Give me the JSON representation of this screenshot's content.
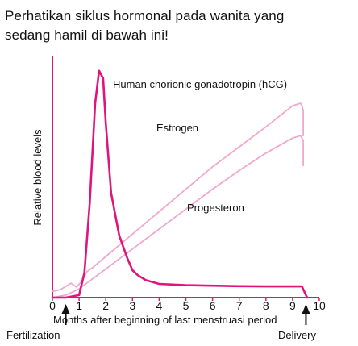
{
  "question": {
    "line1": "Perhatikan siklus hormonal pada wanita yang",
    "line2": "sedang hamil di bawah ini!"
  },
  "chart_data": {
    "type": "line",
    "xlabel": "Months after beginning of last menstruasi period",
    "ylabel": "Relative blood levels",
    "xlim": [
      0,
      10
    ],
    "ylim": [
      0,
      100
    ],
    "xticks": [
      "0",
      "1",
      "2",
      "3",
      "4",
      "5",
      "6",
      "7",
      "8",
      "9",
      "10"
    ],
    "grid": false,
    "legend": "none (series labelled directly on the plot)",
    "annotations": [
      {
        "text": "Fertilization",
        "x": 0.5
      },
      {
        "text": "Delivery",
        "x": 9.5
      }
    ],
    "series": [
      {
        "name": "Human chorionic gonadotropin (hCG)",
        "color": "#e0147a",
        "x": [
          0,
          0.5,
          1.0,
          1.2,
          1.4,
          1.6,
          1.75,
          1.9,
          2.0,
          2.2,
          2.5,
          2.8,
          3.0,
          3.2,
          3.5,
          4.0,
          5.0,
          6.0,
          7.0,
          8.0,
          9.0,
          9.35,
          9.5,
          9.55
        ],
        "y": [
          0,
          0,
          1,
          10,
          38,
          78,
          91,
          88,
          70,
          42,
          25,
          16,
          11,
          9,
          7,
          5.5,
          5,
          4.8,
          4.6,
          4.5,
          4.5,
          4.5,
          1,
          0
        ]
      },
      {
        "name": "Estrogen",
        "color": "#f0a8cc",
        "x": [
          0,
          0.3,
          0.5,
          0.7,
          0.9,
          1.1,
          1.3,
          1.5,
          2.0,
          3.0,
          4.0,
          5.0,
          6.0,
          7.0,
          8.0,
          9.0,
          9.3,
          9.35,
          9.4,
          9.4
        ],
        "y": [
          2.5,
          3.2,
          4.5,
          5.8,
          4.2,
          6.5,
          10.5,
          12,
          16.5,
          25.5,
          34.5,
          43.5,
          52.5,
          60.5,
          68.5,
          77,
          78,
          77,
          75,
          65
        ]
      },
      {
        "name": "Progesteron",
        "color": "#f0a8cc",
        "x": [
          0,
          0.5,
          1.0,
          1.5,
          2.0,
          3.0,
          4.0,
          5.0,
          6.0,
          7.0,
          8.0,
          9.0,
          9.3,
          9.4,
          9.4
        ],
        "y": [
          0,
          1,
          3.5,
          7.5,
          11.5,
          19.5,
          27.5,
          35.5,
          43.5,
          51,
          58,
          64,
          65,
          63,
          53
        ]
      }
    ]
  }
}
